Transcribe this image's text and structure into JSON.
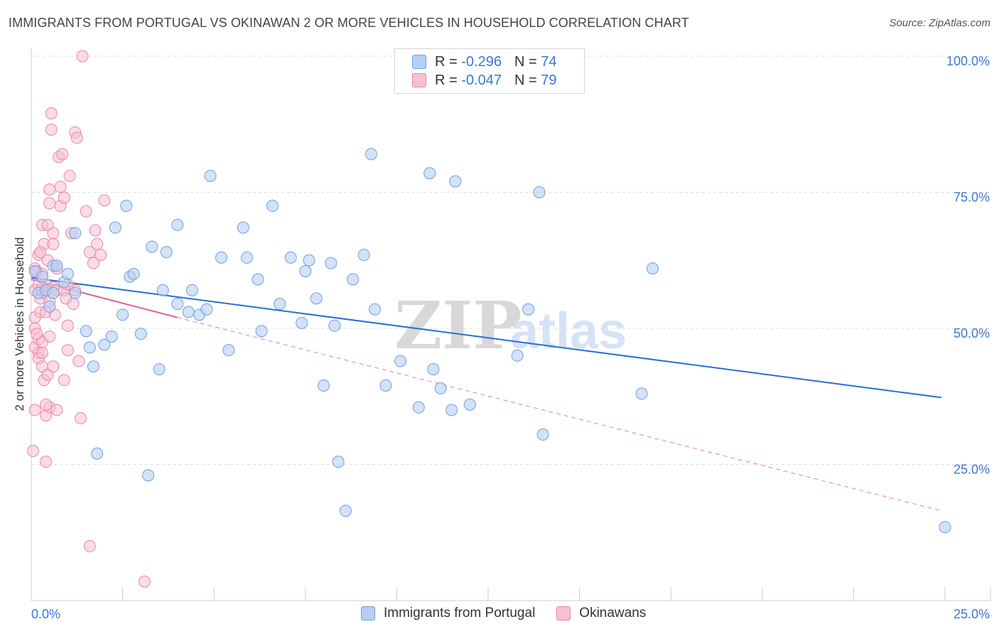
{
  "header": {
    "title": "IMMIGRANTS FROM PORTUGAL VS OKINAWAN 2 OR MORE VEHICLES IN HOUSEHOLD CORRELATION CHART",
    "source": "Source: ZipAtlas.com"
  },
  "legend_top": {
    "rows": [
      {
        "r_label": "R =",
        "r_value": "-0.296",
        "n_label": "N =",
        "n_value": "74"
      },
      {
        "r_label": "R =",
        "r_value": "-0.047",
        "n_label": "N =",
        "n_value": "79"
      }
    ]
  },
  "legend_bottom": {
    "items": [
      {
        "label": "Immigrants from Portugal"
      },
      {
        "label": "Okinawans"
      }
    ]
  },
  "colors": {
    "blue_fill": "#b7cff2",
    "blue_stroke": "#6f9fe0",
    "blue_line": "#2a6fd4",
    "pink_fill": "#f7c0d2",
    "pink_stroke": "#ea86a8",
    "pink_line": "#e0628e",
    "tick_label": "#3a78d6",
    "grid": "#dddddd"
  },
  "chart_data": {
    "type": "scatter",
    "title": "IMMIGRANTS FROM PORTUGAL VS OKINAWAN 2 OR MORE VEHICLES IN HOUSEHOLD CORRELATION CHART",
    "xlabel": "",
    "ylabel": "2 or more Vehicles in Household",
    "xlim": [
      0,
      25
    ],
    "ylim": [
      0,
      100
    ],
    "x_tick_labels": [
      "0.0%",
      "25.0%"
    ],
    "y_tick_labels": [
      "25.0%",
      "50.0%",
      "75.0%",
      "100.0%"
    ],
    "y_ticks": [
      25,
      50,
      75,
      100
    ],
    "grid": true,
    "watermark": "ZIPatlas",
    "legend_position": "bottom",
    "series": [
      {
        "name": "Immigrants from Portugal",
        "r": -0.296,
        "n": 74,
        "trend": {
          "x": [
            0,
            24.9
          ],
          "y": [
            59.3,
            37.3
          ]
        },
        "points": [
          [
            0.1,
            60.5
          ],
          [
            0.2,
            56.5
          ],
          [
            0.3,
            59.5
          ],
          [
            0.4,
            57.0
          ],
          [
            0.5,
            54.0
          ],
          [
            0.6,
            56.5
          ],
          [
            0.6,
            61.5
          ],
          [
            0.7,
            61.5
          ],
          [
            0.9,
            58.5
          ],
          [
            1.0,
            60.0
          ],
          [
            1.2,
            56.5
          ],
          [
            1.2,
            67.5
          ],
          [
            1.5,
            49.5
          ],
          [
            1.6,
            46.5
          ],
          [
            1.7,
            43.0
          ],
          [
            1.8,
            27.0
          ],
          [
            2.0,
            47.0
          ],
          [
            2.2,
            48.5
          ],
          [
            2.3,
            68.5
          ],
          [
            2.5,
            52.5
          ],
          [
            2.6,
            72.5
          ],
          [
            2.7,
            59.5
          ],
          [
            2.8,
            60.0
          ],
          [
            3.0,
            49.0
          ],
          [
            3.2,
            23.0
          ],
          [
            3.3,
            65.0
          ],
          [
            3.5,
            42.5
          ],
          [
            3.6,
            57.0
          ],
          [
            3.7,
            64.0
          ],
          [
            4.0,
            54.5
          ],
          [
            4.0,
            69.0
          ],
          [
            4.3,
            53.0
          ],
          [
            4.4,
            57.0
          ],
          [
            4.6,
            52.5
          ],
          [
            4.8,
            53.5
          ],
          [
            4.9,
            78.0
          ],
          [
            5.2,
            63.0
          ],
          [
            5.4,
            46.0
          ],
          [
            5.8,
            68.5
          ],
          [
            5.9,
            63.0
          ],
          [
            6.2,
            59.0
          ],
          [
            6.3,
            49.5
          ],
          [
            6.6,
            72.5
          ],
          [
            6.8,
            54.5
          ],
          [
            7.1,
            63.0
          ],
          [
            7.4,
            51.0
          ],
          [
            7.5,
            60.5
          ],
          [
            7.6,
            62.5
          ],
          [
            7.8,
            55.5
          ],
          [
            8.0,
            39.5
          ],
          [
            8.2,
            62.0
          ],
          [
            8.3,
            50.5
          ],
          [
            8.4,
            25.5
          ],
          [
            8.6,
            16.5
          ],
          [
            8.8,
            59.0
          ],
          [
            9.1,
            63.5
          ],
          [
            9.3,
            82.0
          ],
          [
            9.4,
            53.5
          ],
          [
            9.7,
            39.5
          ],
          [
            10.1,
            44.0
          ],
          [
            10.6,
            35.5
          ],
          [
            10.9,
            78.5
          ],
          [
            11.0,
            42.5
          ],
          [
            11.2,
            39.0
          ],
          [
            11.5,
            35.0
          ],
          [
            11.6,
            77.0
          ],
          [
            12.0,
            36.0
          ],
          [
            13.3,
            45.0
          ],
          [
            13.6,
            53.5
          ],
          [
            13.9,
            75.0
          ],
          [
            14.0,
            30.5
          ],
          [
            16.7,
            38.0
          ],
          [
            17.0,
            61.0
          ],
          [
            25.0,
            13.5
          ]
        ]
      },
      {
        "name": "Okinawans",
        "r": -0.047,
        "n": 79,
        "trend": {
          "x": [
            0,
            4.0
          ],
          "y": [
            59.0,
            52.0
          ]
        },
        "trend_dashed": {
          "x": [
            4.0,
            24.9
          ],
          "y": [
            52.0,
            16.5
          ]
        },
        "points": [
          [
            0.05,
            27.5
          ],
          [
            0.1,
            35.0
          ],
          [
            0.1,
            46.5
          ],
          [
            0.1,
            50.0
          ],
          [
            0.1,
            52.0
          ],
          [
            0.1,
            57.0
          ],
          [
            0.1,
            61.0
          ],
          [
            0.15,
            60.5
          ],
          [
            0.2,
            63.5
          ],
          [
            0.2,
            45.5
          ],
          [
            0.2,
            48.0
          ],
          [
            0.2,
            44.5
          ],
          [
            0.25,
            53.0
          ],
          [
            0.25,
            55.5
          ],
          [
            0.3,
            57.5
          ],
          [
            0.3,
            60.0
          ],
          [
            0.3,
            43.0
          ],
          [
            0.3,
            45.5
          ],
          [
            0.3,
            47.5
          ],
          [
            0.3,
            69.0
          ],
          [
            0.35,
            65.5
          ],
          [
            0.35,
            40.5
          ],
          [
            0.35,
            56.5
          ],
          [
            0.4,
            25.5
          ],
          [
            0.4,
            34.0
          ],
          [
            0.4,
            53.0
          ],
          [
            0.4,
            58.0
          ],
          [
            0.45,
            62.5
          ],
          [
            0.45,
            69.0
          ],
          [
            0.45,
            41.5
          ],
          [
            0.5,
            35.5
          ],
          [
            0.5,
            48.5
          ],
          [
            0.5,
            55.0
          ],
          [
            0.5,
            73.0
          ],
          [
            0.5,
            75.5
          ],
          [
            0.55,
            89.5
          ],
          [
            0.55,
            86.5
          ],
          [
            0.6,
            57.5
          ],
          [
            0.6,
            65.5
          ],
          [
            0.6,
            67.5
          ],
          [
            0.65,
            52.5
          ],
          [
            0.7,
            57.0
          ],
          [
            0.7,
            35.0
          ],
          [
            0.7,
            61.0
          ],
          [
            0.75,
            81.5
          ],
          [
            0.8,
            76.0
          ],
          [
            0.8,
            72.5
          ],
          [
            0.85,
            82.0
          ],
          [
            0.9,
            74.0
          ],
          [
            0.9,
            57.0
          ],
          [
            0.95,
            55.5
          ],
          [
            1.0,
            50.5
          ],
          [
            1.0,
            58.0
          ],
          [
            1.05,
            78.0
          ],
          [
            1.1,
            67.5
          ],
          [
            1.15,
            54.5
          ],
          [
            1.2,
            86.0
          ],
          [
            1.25,
            85.0
          ],
          [
            1.3,
            44.0
          ],
          [
            1.35,
            33.5
          ],
          [
            1.4,
            100.0
          ],
          [
            1.5,
            71.5
          ],
          [
            1.6,
            64.0
          ],
          [
            1.7,
            62.0
          ],
          [
            1.75,
            68.0
          ],
          [
            1.8,
            65.5
          ],
          [
            1.9,
            63.5
          ],
          [
            2.0,
            73.5
          ],
          [
            1.2,
            57.0
          ],
          [
            1.0,
            46.0
          ],
          [
            0.6,
            43.0
          ],
          [
            0.9,
            40.5
          ],
          [
            0.3,
            57.0
          ],
          [
            0.2,
            58.0
          ],
          [
            0.4,
            36.0
          ],
          [
            1.6,
            10.0
          ],
          [
            3.1,
            3.5
          ],
          [
            0.15,
            49.0
          ],
          [
            0.25,
            64.0
          ]
        ]
      }
    ]
  }
}
